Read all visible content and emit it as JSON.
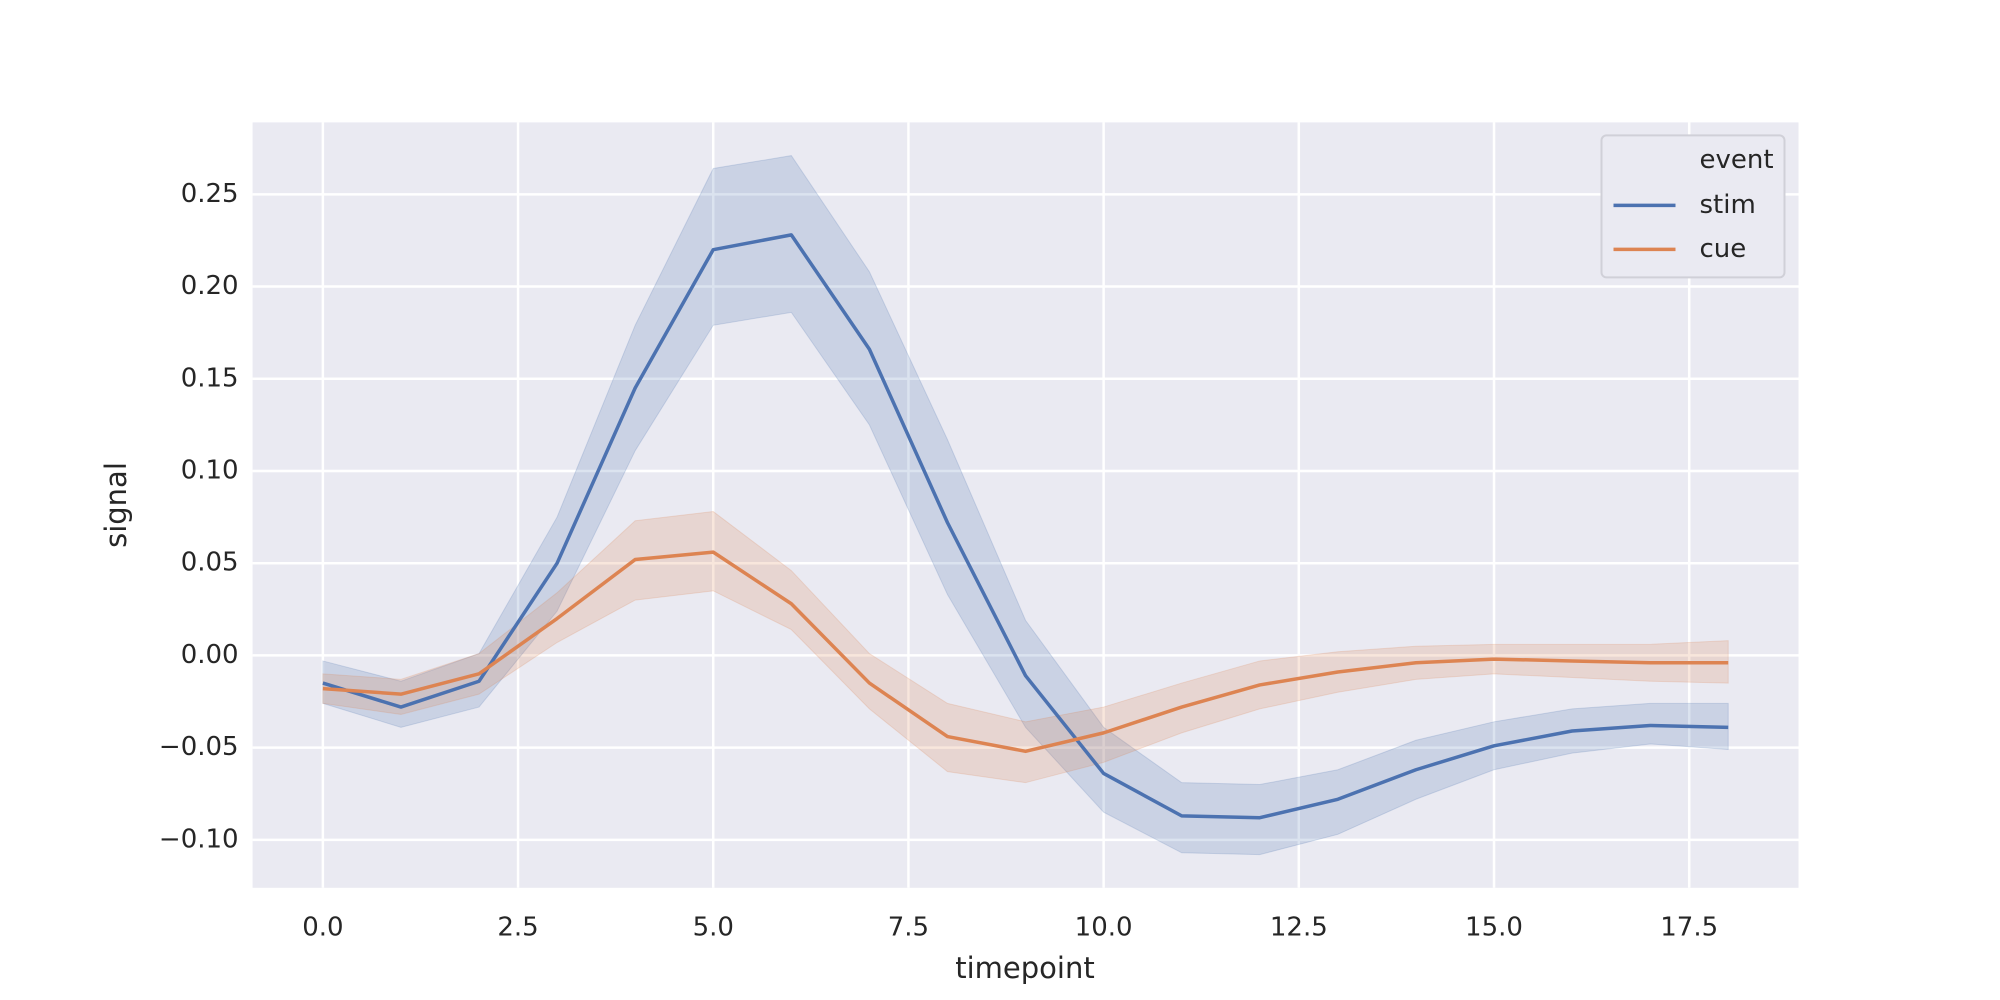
{
  "chart_data": {
    "type": "line",
    "x_label": "timepoint",
    "y_label": "signal",
    "x": [
      0,
      1,
      2,
      3,
      4,
      5,
      6,
      7,
      8,
      9,
      10,
      11,
      12,
      13,
      14,
      15,
      16,
      17,
      18
    ],
    "series": [
      {
        "name": "stim",
        "color": "#4c72b0",
        "values": [
          -0.015,
          -0.028,
          -0.014,
          0.05,
          0.145,
          0.22,
          0.228,
          0.166,
          0.072,
          -0.011,
          -0.064,
          -0.087,
          -0.088,
          -0.078,
          -0.062,
          -0.049,
          -0.041,
          -0.038,
          -0.039
        ],
        "upper": [
          -0.003,
          -0.014,
          0.001,
          0.075,
          0.179,
          0.264,
          0.271,
          0.208,
          0.117,
          0.019,
          -0.039,
          -0.069,
          -0.07,
          -0.062,
          -0.046,
          -0.036,
          -0.029,
          -0.026,
          -0.026
        ],
        "lower": [
          -0.026,
          -0.039,
          -0.028,
          0.024,
          0.111,
          0.179,
          0.186,
          0.125,
          0.033,
          -0.039,
          -0.085,
          -0.107,
          -0.108,
          -0.097,
          -0.078,
          -0.062,
          -0.053,
          -0.048,
          -0.051
        ]
      },
      {
        "name": "cue",
        "color": "#dd8452",
        "values": [
          -0.018,
          -0.021,
          -0.01,
          0.02,
          0.052,
          0.056,
          0.028,
          -0.015,
          -0.044,
          -0.052,
          -0.042,
          -0.028,
          -0.016,
          -0.009,
          -0.004,
          -0.002,
          -0.003,
          -0.004,
          -0.004
        ],
        "upper": [
          -0.01,
          -0.013,
          0.001,
          0.034,
          0.073,
          0.078,
          0.046,
          0.001,
          -0.026,
          -0.036,
          -0.028,
          -0.015,
          -0.003,
          0.002,
          0.005,
          0.006,
          0.006,
          0.006,
          0.008
        ],
        "lower": [
          -0.026,
          -0.032,
          -0.021,
          0.007,
          0.03,
          0.035,
          0.014,
          -0.029,
          -0.063,
          -0.069,
          -0.058,
          -0.042,
          -0.029,
          -0.02,
          -0.013,
          -0.01,
          -0.012,
          -0.014,
          -0.015
        ]
      }
    ],
    "legend_title": "event",
    "legend": "upper right",
    "xlim": [
      -0.9,
      18.9
    ],
    "ylim": [
      -0.126,
      0.289
    ],
    "xticks": [
      {
        "value": 0,
        "label": "0.0"
      },
      {
        "value": 2.5,
        "label": "2.5"
      },
      {
        "value": 5,
        "label": "5.0"
      },
      {
        "value": 7.5,
        "label": "7.5"
      },
      {
        "value": 10,
        "label": "10.0"
      },
      {
        "value": 12.5,
        "label": "12.5"
      },
      {
        "value": 15,
        "label": "15.0"
      },
      {
        "value": 17.5,
        "label": "17.5"
      }
    ],
    "yticks": [
      {
        "value": -0.1,
        "label": "−0.10"
      },
      {
        "value": -0.05,
        "label": "−0.05"
      },
      {
        "value": 0,
        "label": "0.00"
      },
      0.05,
      {
        "value": 0.1,
        "label": "0.10"
      },
      0.15,
      {
        "value": 0.2,
        "label": "0.20"
      },
      0.25
    ],
    "grid": true,
    "background": "#eaeaf2"
  }
}
